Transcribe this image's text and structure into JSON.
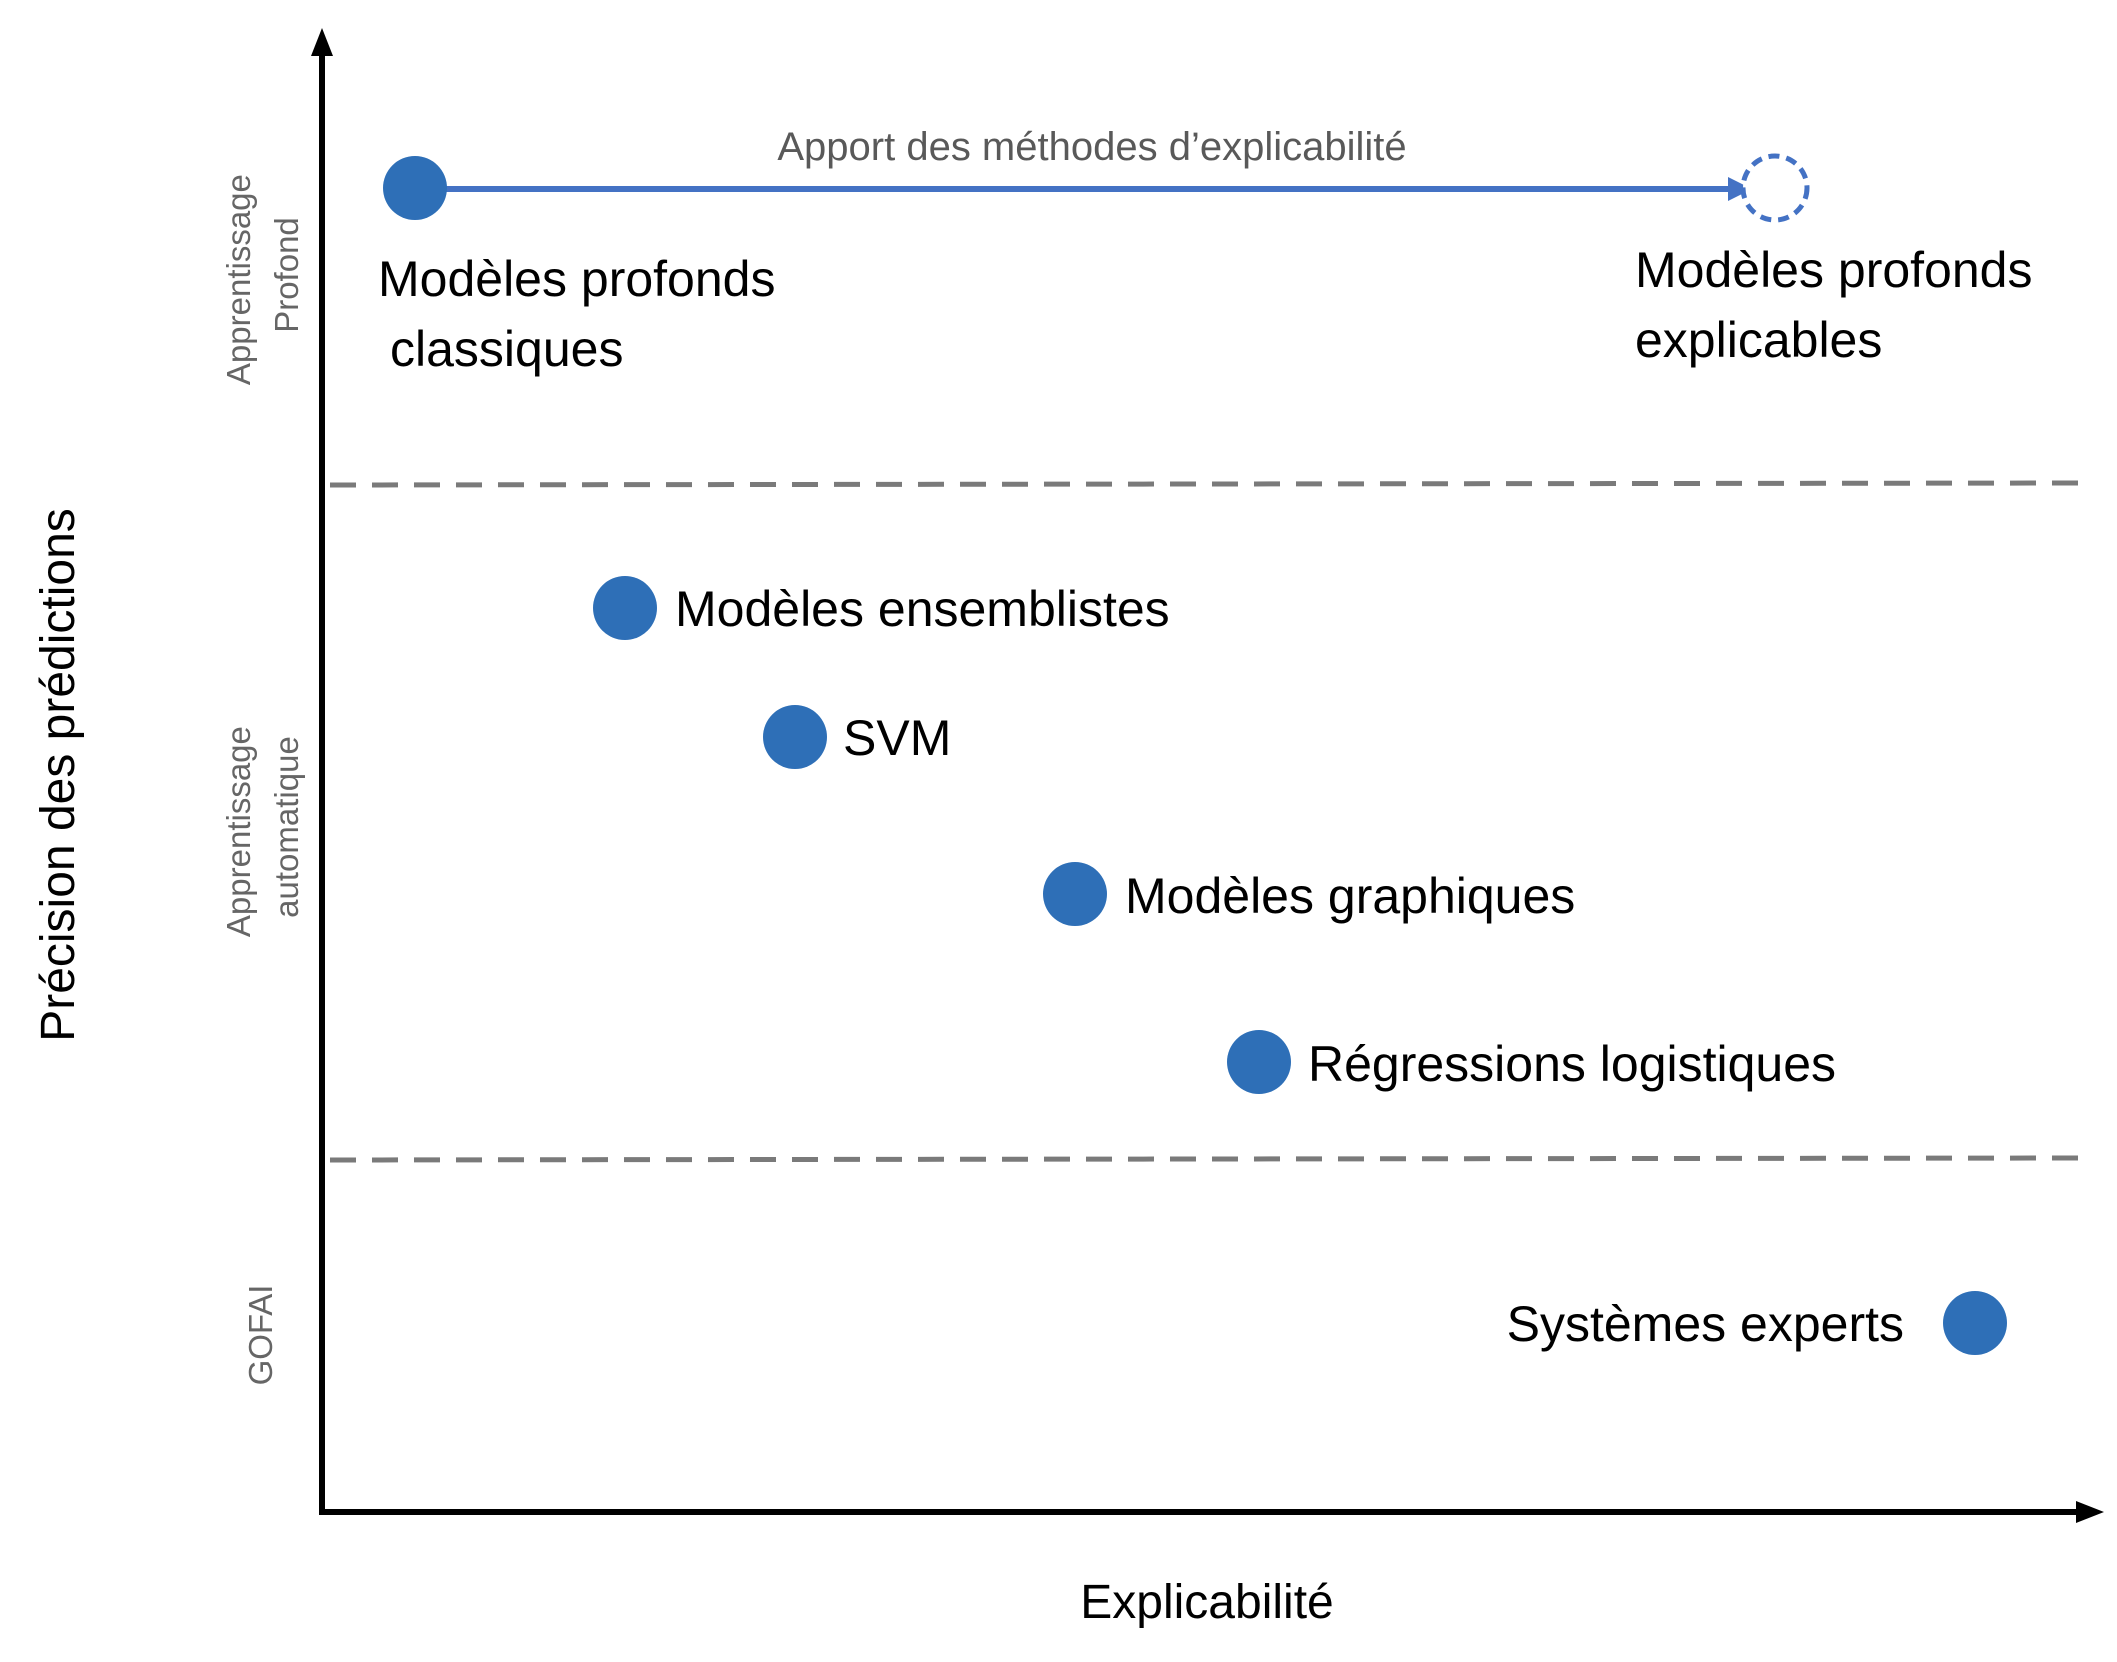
{
  "axes": {
    "x_label": "Explicabilité",
    "y_label": "Précision des prédictions"
  },
  "bands": [
    {
      "lines": [
        "Apprentissage",
        "Profond"
      ]
    },
    {
      "lines": [
        "Apprentissage",
        "automatique"
      ]
    },
    {
      "lines": [
        "GOFAI"
      ]
    }
  ],
  "arrow_label": "Apport des méthodes d’explicabilité",
  "models": [
    {
      "label_lines": [
        "Modèles profonds",
        "classiques"
      ]
    },
    {
      "label_lines": [
        "Modèles profonds",
        "explicables"
      ]
    },
    {
      "label_lines": [
        "Modèles ensemblistes"
      ]
    },
    {
      "label_lines": [
        "SVM"
      ]
    },
    {
      "label_lines": [
        "Modèles graphiques"
      ]
    },
    {
      "label_lines": [
        "Régressions logistiques"
      ]
    },
    {
      "label_lines": [
        "Systèmes experts"
      ]
    }
  ],
  "colors": {
    "point": "#2e6fb7",
    "arrow": "#4472c4",
    "axis": "#000000",
    "divider": "#7a7a7a",
    "band_text": "#666666",
    "arrow_text": "#595959"
  }
}
